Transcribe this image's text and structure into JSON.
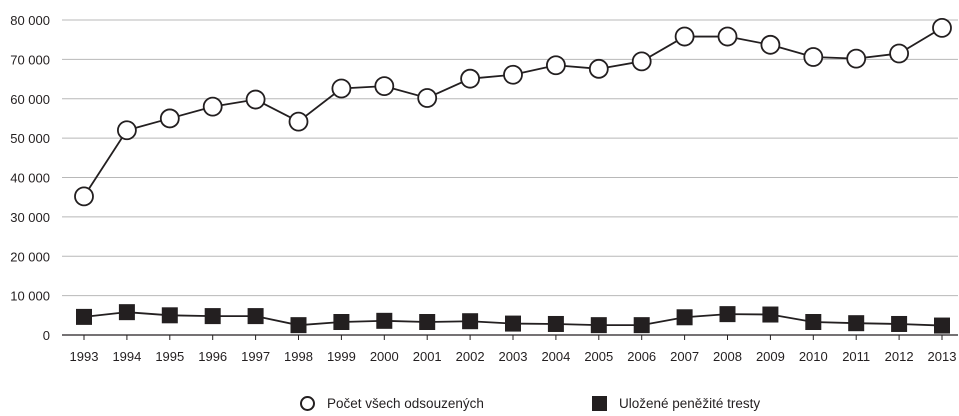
{
  "chart_data": {
    "type": "line",
    "categories": [
      "1993",
      "1994",
      "1995",
      "1996",
      "1997",
      "1998",
      "1999",
      "2000",
      "2001",
      "2002",
      "2003",
      "2004",
      "2005",
      "2006",
      "2007",
      "2008",
      "2009",
      "2010",
      "2011",
      "2012",
      "2013"
    ],
    "series": [
      {
        "name": "Počet všech odsouzených",
        "marker": "circle-open",
        "values": [
          35200,
          52000,
          55000,
          58000,
          59800,
          54200,
          62600,
          63200,
          60200,
          65100,
          66100,
          68500,
          67600,
          69500,
          75800,
          75800,
          73700,
          70600,
          70200,
          71500,
          78000
        ]
      },
      {
        "name": "Uložené peněžité tresty",
        "marker": "square-filled",
        "values": [
          4600,
          5800,
          5000,
          4800,
          4800,
          2500,
          3300,
          3600,
          3300,
          3500,
          2900,
          2800,
          2500,
          2500,
          4500,
          5300,
          5200,
          3300,
          3000,
          2800,
          2400
        ]
      }
    ],
    "y_ticks": [
      "0",
      "10 000",
      "20 000",
      "30 000",
      "40 000",
      "50 000",
      "60 000",
      "70 000",
      "80 000"
    ],
    "ylim": [
      0,
      80000
    ],
    "grid": true,
    "legend_position": "bottom",
    "line_color": "#231f20",
    "grid_color": "#b8b8b8"
  }
}
